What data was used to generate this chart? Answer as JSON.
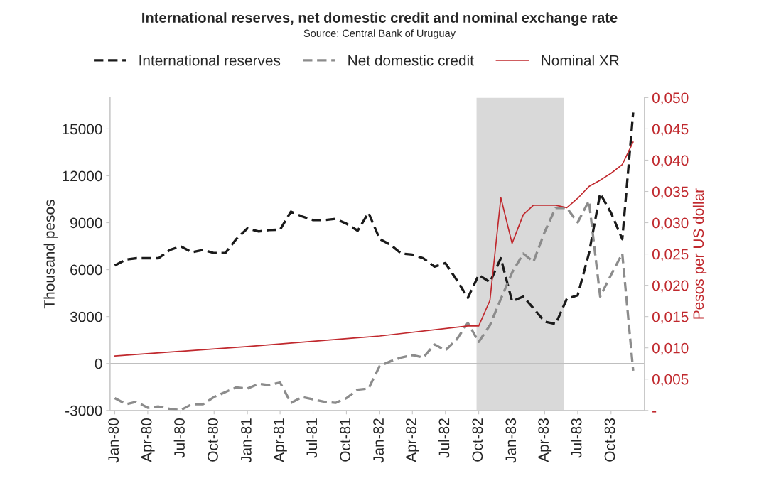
{
  "chart_data": {
    "type": "line",
    "title": "International reserves, net domestic credit and nominal exchange rate",
    "subtitle": "Source: Central Bank of Uruguay",
    "ylabel": "Thousand pesos",
    "y2label": "Pesos per US dollar",
    "x": [
      "1980-01",
      "1980-02",
      "1980-03",
      "1980-04",
      "1980-05",
      "1980-06",
      "1980-07",
      "1980-08",
      "1980-09",
      "1980-10",
      "1980-11",
      "1980-12",
      "1981-01",
      "1981-02",
      "1981-03",
      "1981-04",
      "1981-05",
      "1981-06",
      "1981-07",
      "1981-08",
      "1981-09",
      "1981-10",
      "1981-11",
      "1981-12",
      "1982-01",
      "1982-02",
      "1982-03",
      "1982-04",
      "1982-05",
      "1982-06",
      "1982-07",
      "1982-08",
      "1982-09",
      "1982-10",
      "1982-11",
      "1982-12",
      "1983-01",
      "1983-02",
      "1983-03",
      "1983-04",
      "1983-05",
      "1983-06",
      "1983-07",
      "1983-08",
      "1983-09",
      "1983-10",
      "1983-11",
      "1983-12"
    ],
    "series": [
      {
        "name": "International reserves",
        "color": "#1a1a1a",
        "line_style": "dashed",
        "values": [
          6270,
          6650,
          6730,
          6730,
          6730,
          7260,
          7490,
          7110,
          7260,
          7060,
          7060,
          7950,
          8640,
          8440,
          8530,
          8560,
          9710,
          9400,
          9170,
          9170,
          9250,
          8940,
          8490,
          9630,
          7950,
          7570,
          7030,
          6960,
          6730,
          6190,
          6420,
          5350,
          4200,
          5660,
          5200,
          6730,
          3980,
          4280,
          3530,
          2680,
          2520,
          4130,
          4360,
          7030,
          10870,
          9630,
          7950,
          16050
        ]
      },
      {
        "name": "Net domestic credit",
        "color": "#8c8c8c",
        "line_style": "dashed",
        "values": [
          -2215,
          -2600,
          -2450,
          -2830,
          -2750,
          -2900,
          -2980,
          -2600,
          -2600,
          -2140,
          -1830,
          -1530,
          -1600,
          -1300,
          -1380,
          -1220,
          -2520,
          -2140,
          -2290,
          -2450,
          -2520,
          -2215,
          -1680,
          -1600,
          -150,
          150,
          380,
          540,
          380,
          1220,
          840,
          1530,
          2600,
          1380,
          2450,
          4130,
          5810,
          7030,
          6500,
          8410,
          9940,
          9940,
          9020,
          10400,
          4280,
          5660,
          7030,
          -460
        ]
      },
      {
        "name": "Nominal XR",
        "color": "#c0282d",
        "line_style": "solid",
        "axis": "y2",
        "x": [
          "1980-01",
          "1981-01",
          "1982-01",
          "1982-09",
          "1982-10",
          "1982-11",
          "1982-12",
          "1983-01",
          "1983-02",
          "1983-03",
          "1983-04",
          "1983-05",
          "1983-06",
          "1983-07",
          "1983-08",
          "1983-09",
          "1983-10",
          "1983-11",
          "1983-12"
        ],
        "values": [
          0.0087,
          0.0102,
          0.0119,
          0.0135,
          0.0135,
          0.0176,
          0.034,
          0.0267,
          0.0313,
          0.0328,
          0.0328,
          0.0328,
          0.0324,
          0.0339,
          0.0358,
          0.0368,
          0.0379,
          0.0393,
          0.0429
        ]
      }
    ],
    "xlim": [
      "1979-12-19",
      "1984-01-01"
    ],
    "xticks": [
      {
        "value": "1980-01",
        "label": "Jan-80"
      },
      {
        "value": "1980-04",
        "label": "Apr-80"
      },
      {
        "value": "1980-07",
        "label": "Jul-80"
      },
      {
        "value": "1980-10",
        "label": "Oct-80"
      },
      {
        "value": "1981-01",
        "label": "Jan-81"
      },
      {
        "value": "1981-04",
        "label": "Apr-81"
      },
      {
        "value": "1981-07",
        "label": "Jul-81"
      },
      {
        "value": "1981-10",
        "label": "Oct-81"
      },
      {
        "value": "1982-01",
        "label": "Jan-82"
      },
      {
        "value": "1982-04",
        "label": "Apr-82"
      },
      {
        "value": "1982-07",
        "label": "Jul-82"
      },
      {
        "value": "1982-10",
        "label": "Oct-82"
      },
      {
        "value": "1983-01",
        "label": "Jan-83"
      },
      {
        "value": "1983-04",
        "label": "Apr-83"
      },
      {
        "value": "1983-07",
        "label": "Jul-83"
      },
      {
        "value": "1983-10",
        "label": "Oct-83"
      }
    ],
    "ylim": [
      -3000,
      17000
    ],
    "yticks": [
      -3000,
      0,
      3000,
      6000,
      9000,
      12000,
      15000
    ],
    "y2lim": [
      0,
      0.05
    ],
    "y2ticks": [
      {
        "value": 0,
        "label": "-"
      },
      {
        "value": 0.005,
        "label": "0,005"
      },
      {
        "value": 0.01,
        "label": "0,010"
      },
      {
        "value": 0.015,
        "label": "0,015"
      },
      {
        "value": 0.02,
        "label": "0,020"
      },
      {
        "value": 0.025,
        "label": "0,025"
      },
      {
        "value": 0.03,
        "label": "0,030"
      },
      {
        "value": 0.035,
        "label": "0,035"
      },
      {
        "value": 0.04,
        "label": "0,040"
      },
      {
        "value": 0.045,
        "label": "0,045"
      },
      {
        "value": 0.05,
        "label": "0,050"
      }
    ],
    "bands": [
      {
        "axis": "x",
        "from": "1982-09-25",
        "to": "1983-05-25",
        "color": "#d9d9d9"
      }
    ],
    "ref_lines": [
      {
        "axis": "y",
        "value": 0,
        "color": "#bfbfbf"
      }
    ],
    "grid": false,
    "legend": "top"
  }
}
